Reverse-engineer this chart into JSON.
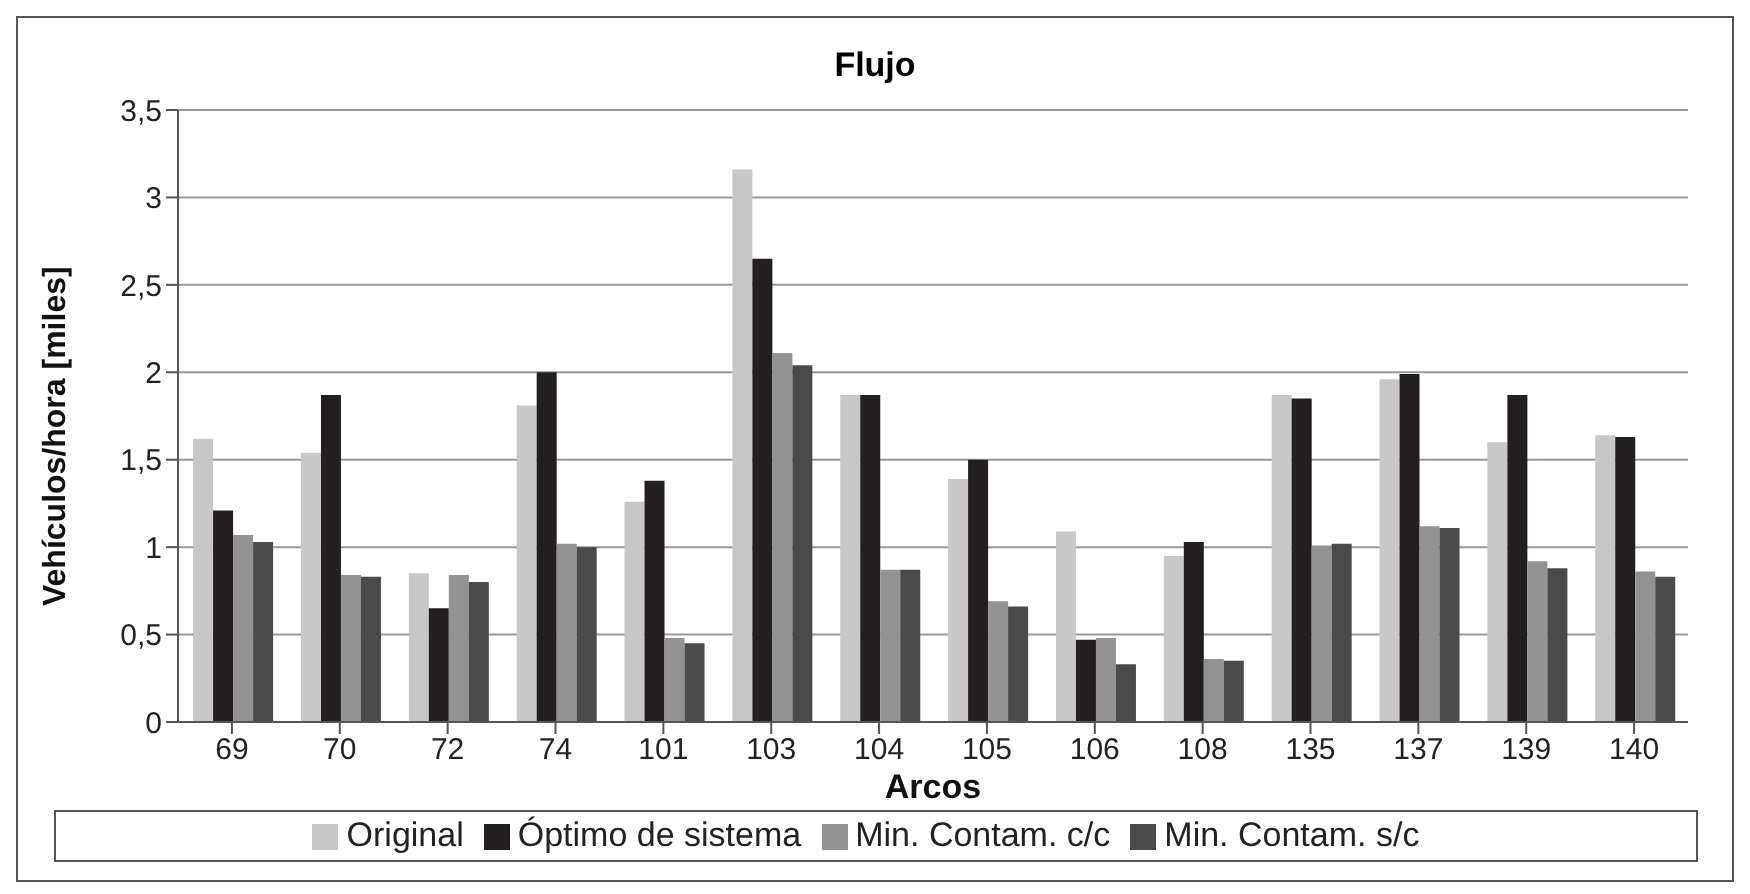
{
  "chart_data": {
    "type": "bar",
    "title": "Flujo",
    "xlabel": "Arcos",
    "ylabel": "Vehículos/hora [miles]",
    "categories": [
      "69",
      "70",
      "72",
      "74",
      "101",
      "103",
      "104",
      "105",
      "106",
      "108",
      "135",
      "137",
      "139",
      "140"
    ],
    "series": [
      {
        "name": "Original",
        "color": "#c8c8c8",
        "values": [
          1.62,
          1.54,
          0.85,
          1.81,
          1.26,
          3.16,
          1.87,
          1.39,
          1.09,
          0.95,
          1.87,
          1.96,
          1.6,
          1.64
        ]
      },
      {
        "name": "Óptimo de sistema",
        "color": "#231f20",
        "values": [
          1.21,
          1.87,
          0.65,
          2.0,
          1.38,
          2.65,
          1.87,
          1.5,
          0.47,
          1.03,
          1.85,
          1.99,
          1.87,
          1.63
        ]
      },
      {
        "name": "Min. Contam. c/c",
        "color": "#939393",
        "values": [
          1.07,
          0.84,
          0.84,
          1.02,
          0.48,
          2.11,
          0.87,
          0.69,
          0.48,
          0.36,
          1.01,
          1.12,
          0.92,
          0.86
        ]
      },
      {
        "name": "Min. Contam. s/c",
        "color": "#4a4a4a",
        "values": [
          1.03,
          0.83,
          0.8,
          1.0,
          0.45,
          2.04,
          0.87,
          0.66,
          0.33,
          0.35,
          1.02,
          1.11,
          0.88,
          0.83
        ]
      }
    ],
    "ylim": [
      0,
      3.5
    ],
    "yticks": [
      0,
      {
        "value": 0.5,
        "label": "0,5"
      },
      1,
      {
        "value": 1.5,
        "label": "1,5"
      },
      2,
      {
        "value": 2.5,
        "label": "2,5"
      },
      3,
      {
        "value": 3.5,
        "label": "3,5"
      }
    ],
    "grid": "y",
    "legend": "bottom"
  }
}
